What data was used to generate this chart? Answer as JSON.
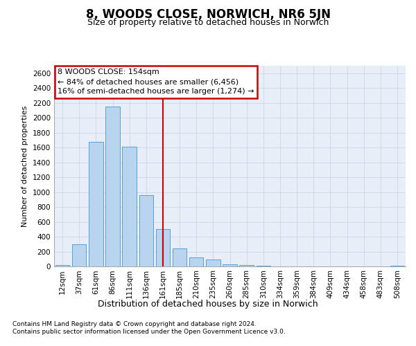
{
  "title": "8, WOODS CLOSE, NORWICH, NR6 5JN",
  "subtitle": "Size of property relative to detached houses in Norwich",
  "xlabel": "Distribution of detached houses by size in Norwich",
  "ylabel": "Number of detached properties",
  "bar_color": "#b8d4ee",
  "bar_edge_color": "#5a9fd4",
  "grid_color": "#c8cfe0",
  "bg_color": "#e8eef8",
  "annotation_box_edgecolor": "#cc0000",
  "vline_color": "#cc0000",
  "categories": [
    "12sqm",
    "37sqm",
    "61sqm",
    "86sqm",
    "111sqm",
    "136sqm",
    "161sqm",
    "185sqm",
    "210sqm",
    "235sqm",
    "260sqm",
    "285sqm",
    "310sqm",
    "334sqm",
    "359sqm",
    "384sqm",
    "409sqm",
    "434sqm",
    "458sqm",
    "483sqm",
    "508sqm"
  ],
  "values": [
    20,
    295,
    1680,
    2150,
    1610,
    960,
    500,
    245,
    125,
    95,
    30,
    18,
    8,
    3,
    2,
    3,
    1,
    1,
    1,
    1,
    12
  ],
  "vline_index": 6,
  "annotation_text": "8 WOODS CLOSE: 154sqm\n← 84% of detached houses are smaller (6,456)\n16% of semi-detached houses are larger (1,274) →",
  "footer1": "Contains HM Land Registry data © Crown copyright and database right 2024.",
  "footer2": "Contains public sector information licensed under the Open Government Licence v3.0.",
  "ylim": [
    0,
    2700
  ],
  "yticks": [
    0,
    200,
    400,
    600,
    800,
    1000,
    1200,
    1400,
    1600,
    1800,
    2000,
    2200,
    2400,
    2600
  ]
}
